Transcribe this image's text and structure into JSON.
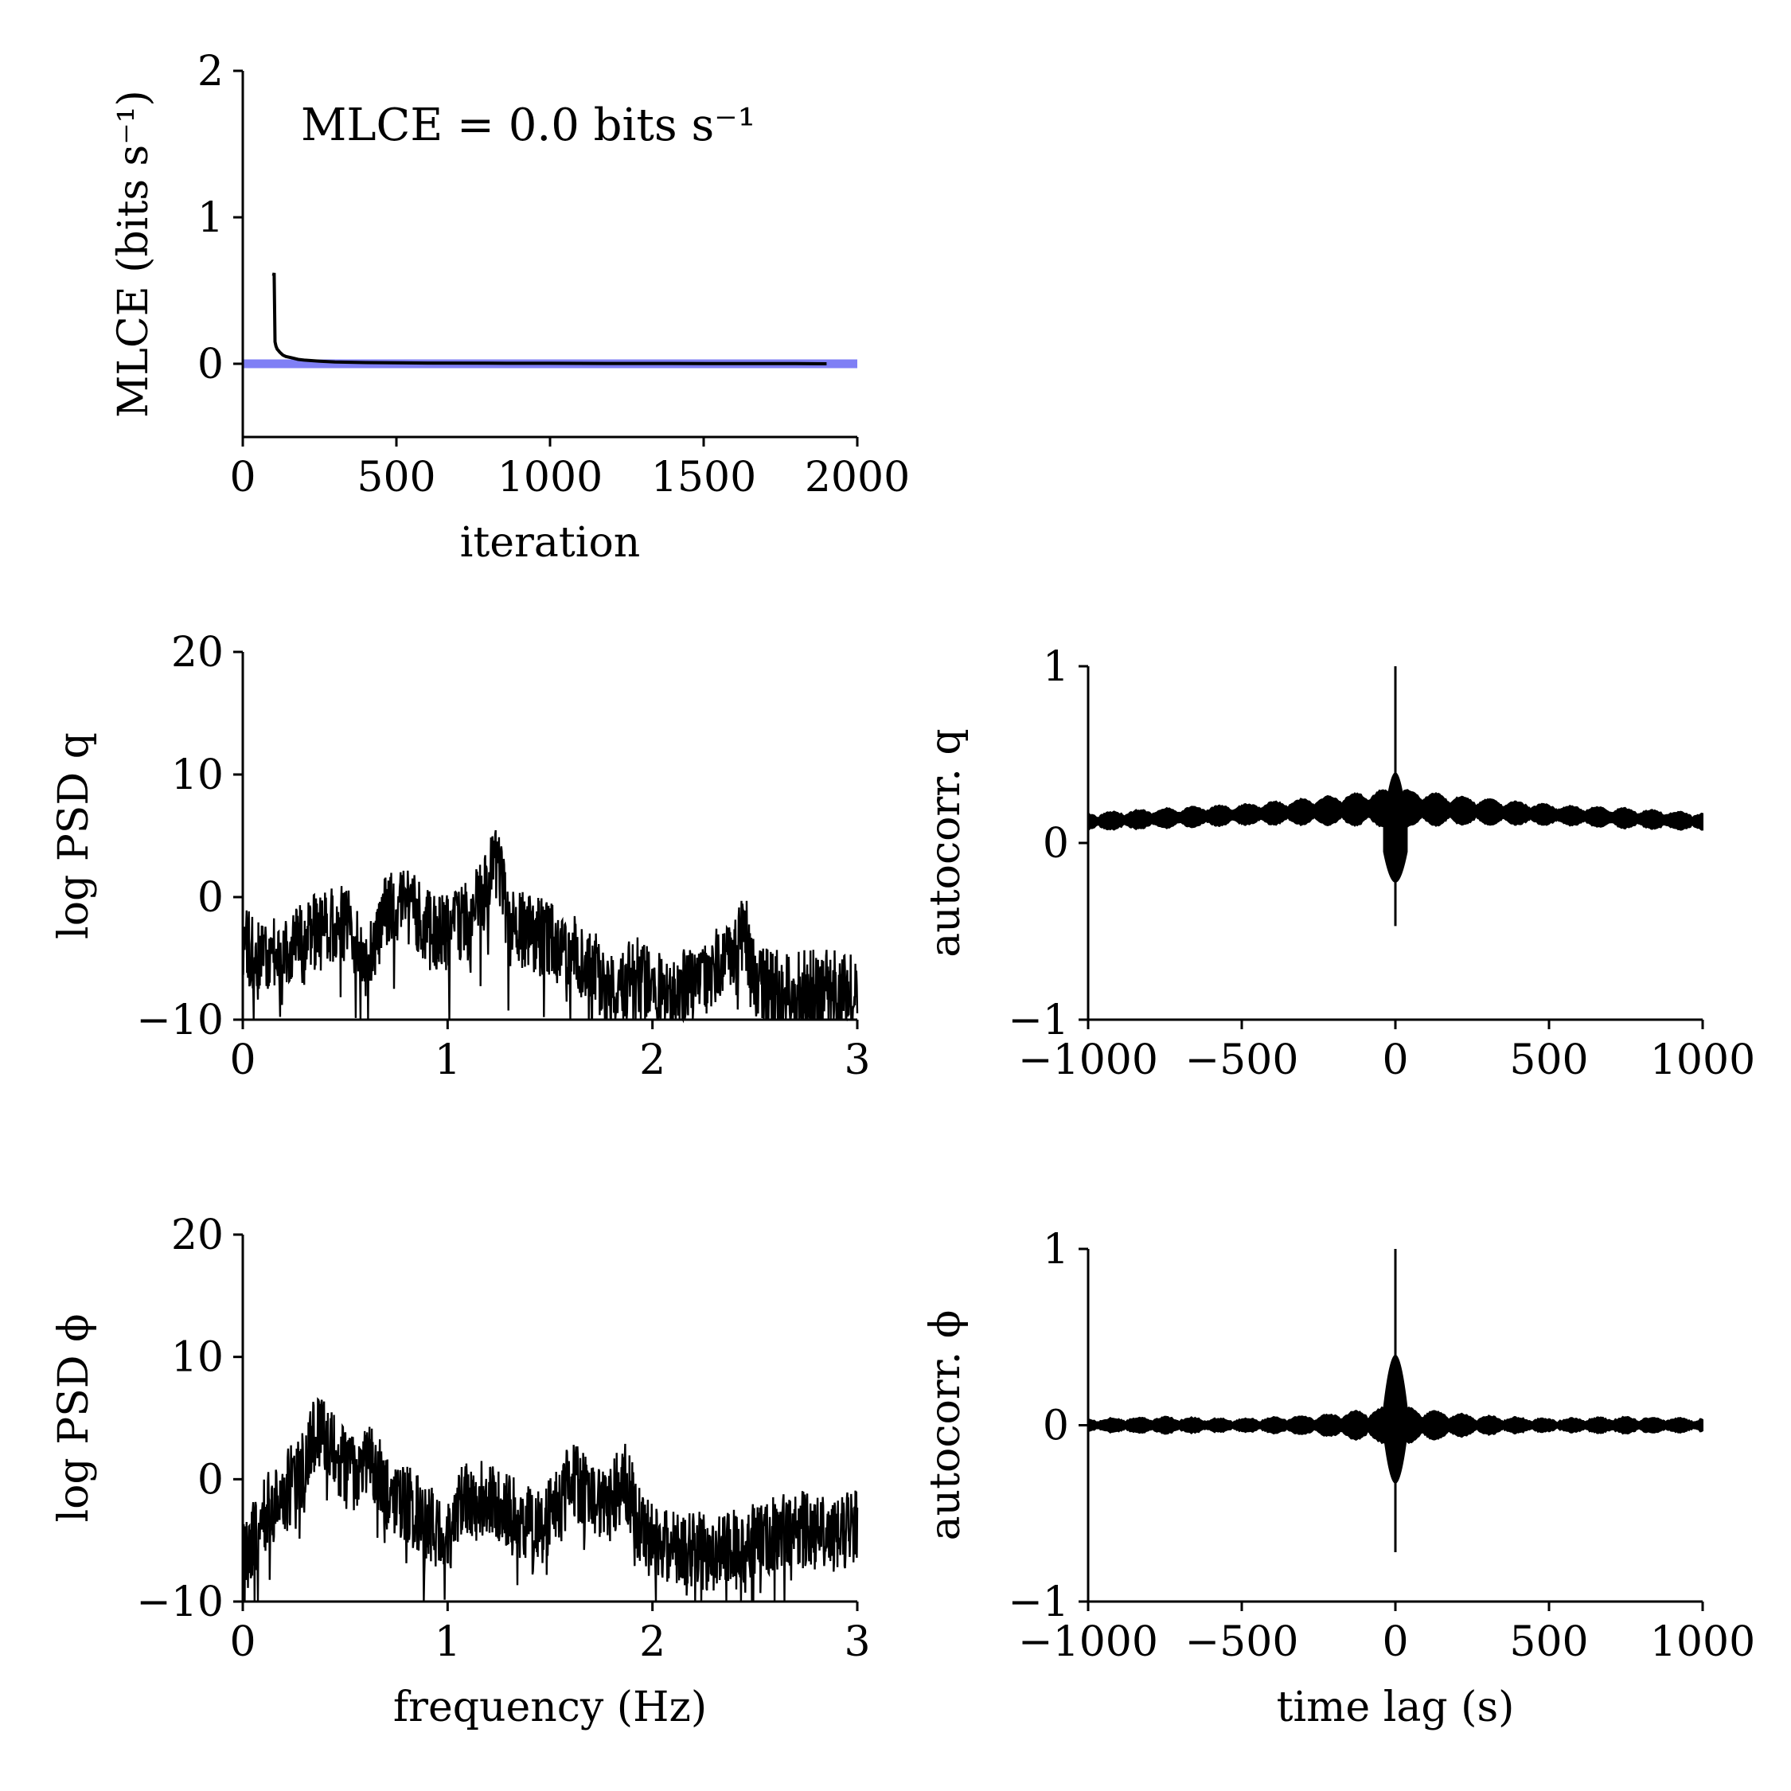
{
  "colors": {
    "ink": "#000000",
    "zero_line": "#7f7ff5",
    "background": "#ffffff"
  },
  "chart_data": [
    {
      "id": "mlce",
      "type": "line",
      "xlabel": "iteration",
      "ylabel": "MLCE (bits s⁻¹)",
      "annotation": "MLCE = 0.0 bits s⁻¹",
      "xlim": [
        0,
        2000
      ],
      "ylim": [
        -0.5,
        2
      ],
      "xticks": [
        0,
        500,
        1000,
        1500,
        2000
      ],
      "yticks": [
        0,
        1,
        2
      ],
      "xtick_labels": [
        "0",
        "500",
        "1000",
        "1500",
        "2000"
      ],
      "ytick_labels": [
        "0",
        "1",
        "2"
      ],
      "reference_line": {
        "y": 0,
        "color": "#7f7ff5",
        "x_range": [
          0,
          2000
        ]
      },
      "x": [
        100,
        102,
        105,
        108,
        112,
        116,
        120,
        130,
        140,
        160,
        180,
        200,
        250,
        300,
        400,
        600,
        800,
        1000,
        1200,
        1400,
        1600,
        1800,
        1900
      ],
      "y": [
        0.6,
        0.62,
        0.15,
        0.12,
        0.1,
        0.09,
        0.08,
        0.06,
        0.05,
        0.04,
        0.03,
        0.025,
        0.018,
        0.012,
        0.008,
        0.005,
        0.004,
        0.003,
        0.002,
        0.002,
        0.001,
        0.001,
        0.0
      ],
      "grid": false
    },
    {
      "id": "psd-q",
      "type": "line",
      "xlabel": "",
      "ylabel": "log PSD q",
      "xlim": [
        0,
        3
      ],
      "ylim": [
        -10,
        20
      ],
      "xticks": [
        0,
        1,
        2,
        3
      ],
      "yticks": [
        -10,
        0,
        10,
        20
      ],
      "xtick_labels": [
        "0",
        "1",
        "2",
        "3"
      ],
      "ytick_labels": [
        "−10",
        "0",
        "10",
        "20"
      ],
      "envelope_x": [
        0,
        0.1,
        0.2,
        0.35,
        0.5,
        0.6,
        0.7,
        0.8,
        0.9,
        1.0,
        1.1,
        1.2,
        1.23,
        1.3,
        1.4,
        1.5,
        1.6,
        1.7,
        1.8,
        1.9,
        2.0,
        2.1,
        2.2,
        2.3,
        2.4,
        2.45,
        2.5,
        2.6,
        2.8,
        3.0
      ],
      "envelope_y": [
        -4,
        -5,
        -4.5,
        -3,
        -2,
        -5,
        -1,
        -0.5,
        -2.5,
        -3,
        -1.5,
        1,
        3.5,
        -2,
        -3,
        -3.5,
        -4.5,
        -5.5,
        -8,
        -6,
        -7.5,
        -8,
        -7,
        -6,
        -4,
        -2.5,
        -7,
        -7.5,
        -7.5,
        -7.5
      ],
      "grid": false
    },
    {
      "id": "autocorr-q",
      "type": "line",
      "xlabel": "",
      "ylabel": "autocorr. q",
      "xlim": [
        -1000,
        1000
      ],
      "ylim": [
        -1,
        1
      ],
      "xticks": [
        -1000,
        -500,
        0,
        500,
        1000
      ],
      "yticks": [
        -1,
        0,
        1
      ],
      "xtick_labels": [
        "−1000",
        "−500",
        "0",
        "500",
        "1000"
      ],
      "ytick_labels": [
        "−1",
        "0",
        "1"
      ],
      "baseline_x": [
        -1000,
        -750,
        -500,
        -250,
        0,
        250,
        500,
        750,
        1000
      ],
      "baseline_y": [
        0.12,
        0.14,
        0.16,
        0.18,
        0.2,
        0.18,
        0.16,
        0.14,
        0.12
      ],
      "band_halfwidth": [
        0.04,
        0.05,
        0.05,
        0.07,
        0.1,
        0.07,
        0.05,
        0.05,
        0.04
      ],
      "peak": {
        "x": 0,
        "max": 1.0,
        "min": -0.47
      },
      "grid": false
    },
    {
      "id": "psd-phi",
      "type": "line",
      "xlabel": "frequency (Hz)",
      "ylabel": "log PSD ϕ",
      "xlim": [
        0,
        3
      ],
      "ylim": [
        -10,
        20
      ],
      "xticks": [
        0,
        1,
        2,
        3
      ],
      "yticks": [
        -10,
        0,
        10,
        20
      ],
      "xtick_labels": [
        "0",
        "1",
        "2",
        "3"
      ],
      "ytick_labels": [
        "−10",
        "0",
        "10",
        "20"
      ],
      "envelope_x": [
        0,
        0.05,
        0.1,
        0.2,
        0.3,
        0.36,
        0.45,
        0.55,
        0.63,
        0.7,
        0.8,
        0.9,
        1.0,
        1.05,
        1.15,
        1.3,
        1.45,
        1.55,
        1.6,
        1.7,
        1.8,
        1.86,
        1.95,
        2.1,
        2.3,
        2.5,
        2.7,
        2.85,
        3.0
      ],
      "envelope_y": [
        -7,
        -5,
        -3,
        -1,
        1,
        4,
        2,
        0.5,
        1.5,
        -1,
        -2,
        -3.5,
        -5,
        -2,
        -1.5,
        -2.5,
        -4,
        -2,
        0,
        -1.5,
        -2,
        0.5,
        -4.5,
        -5.5,
        -6,
        -5,
        -4,
        -4.5,
        -4
      ],
      "grid": false
    },
    {
      "id": "autocorr-phi",
      "type": "line",
      "xlabel": "time lag (s)",
      "ylabel": "autocorr. ϕ",
      "xlim": [
        -1000,
        1000
      ],
      "ylim": [
        -1,
        1
      ],
      "xticks": [
        -1000,
        -500,
        0,
        500,
        1000
      ],
      "yticks": [
        -1,
        0,
        1
      ],
      "xtick_labels": [
        "−1000",
        "−500",
        "0",
        "500",
        "1000"
      ],
      "ytick_labels": [
        "−1",
        "0",
        "1"
      ],
      "baseline_x": [
        -1000,
        -750,
        -500,
        -250,
        0,
        250,
        500,
        750,
        1000
      ],
      "baseline_y": [
        0,
        0,
        0,
        0,
        0,
        0,
        0,
        0,
        0
      ],
      "band_halfwidth": [
        0.03,
        0.04,
        0.03,
        0.05,
        0.1,
        0.05,
        0.03,
        0.04,
        0.03
      ],
      "peak": {
        "x": 0,
        "max": 1.0,
        "min": -0.72
      },
      "grid": false
    }
  ]
}
